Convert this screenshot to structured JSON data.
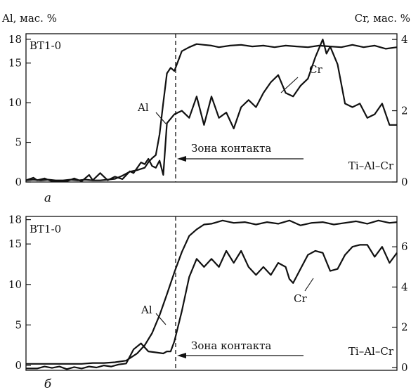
{
  "figure": {
    "left_axis_label": "Al, мас. %",
    "right_axis_label": "Cr, мас. %",
    "colors": {
      "line": "#111111",
      "background": "#ffffff"
    }
  },
  "chart_data": [
    {
      "type": "line",
      "panel_letter": "a",
      "sample_label": "ВТ1-0",
      "alloy_label": "Ti–Al–Cr",
      "contact_label": "Зона контакта",
      "ylabel": "Al, мас. %",
      "y2label": "Cr, мас. %",
      "xlim": [
        0,
        100
      ],
      "ylim": [
        0,
        18.7
      ],
      "y2lim": [
        0,
        4.16
      ],
      "yticks": [
        0,
        5,
        10,
        15,
        18
      ],
      "y2ticks": [
        0,
        2,
        4
      ],
      "contact_x": 38,
      "series": [
        {
          "name": "Al",
          "axis": "left",
          "x": [
            0,
            2,
            4,
            6,
            8,
            10,
            12,
            14,
            16,
            18,
            20,
            22,
            24,
            26,
            28,
            30,
            32,
            33,
            34,
            35,
            36,
            37,
            38,
            39,
            40,
            42,
            44,
            46,
            48,
            50,
            52,
            55,
            58,
            61,
            64,
            67,
            70,
            73,
            76,
            79,
            82,
            85,
            88,
            91,
            94,
            97,
            100
          ],
          "values": [
            0.2,
            0.3,
            0.2,
            0.3,
            0.2,
            0.2,
            0.3,
            0.2,
            0.3,
            0.2,
            0.2,
            0.3,
            0.4,
            0.8,
            1.3,
            1.5,
            1.8,
            2.5,
            3.0,
            3.4,
            6.0,
            10.0,
            13.7,
            14.4,
            14.0,
            16.5,
            17.0,
            17.4,
            17.3,
            17.2,
            17.0,
            17.2,
            17.3,
            17.1,
            17.2,
            17.0,
            17.2,
            17.1,
            17.0,
            17.2,
            17.1,
            17.0,
            17.3,
            17.0,
            17.2,
            16.8,
            17.0
          ]
        },
        {
          "name": "Cr",
          "axis": "right",
          "x": [
            0,
            2,
            3,
            5,
            7,
            9,
            11,
            13,
            15,
            17,
            18,
            20,
            22,
            24,
            26,
            28,
            29,
            30,
            31,
            32,
            33,
            34,
            35,
            36,
            37,
            38,
            40,
            42,
            44,
            46,
            48,
            50,
            52,
            54,
            56,
            58,
            60,
            62,
            64,
            66,
            68,
            70,
            72,
            74,
            76,
            78,
            80,
            81,
            82,
            84,
            86,
            88,
            90,
            92,
            94,
            96,
            98,
            100
          ],
          "values": [
            0.05,
            0.12,
            0.05,
            0.1,
            0.02,
            0.03,
            0.02,
            0.1,
            0.02,
            0.2,
            0.05,
            0.25,
            0.05,
            0.15,
            0.08,
            0.3,
            0.25,
            0.4,
            0.55,
            0.5,
            0.65,
            0.45,
            0.4,
            0.6,
            0.2,
            1.65,
            1.9,
            2.0,
            1.8,
            2.4,
            1.6,
            2.4,
            1.8,
            1.95,
            1.5,
            2.1,
            2.3,
            2.1,
            2.5,
            2.8,
            3.0,
            2.5,
            2.4,
            2.7,
            2.9,
            3.5,
            4.0,
            3.6,
            3.8,
            3.3,
            2.2,
            2.1,
            2.2,
            1.8,
            1.9,
            2.2,
            1.6,
            1.6
          ]
        }
      ]
    },
    {
      "type": "line",
      "panel_letter": "б",
      "sample_label": "ВТ1-0",
      "alloy_label": "Ti–Al–Cr",
      "contact_label": "Зона контакта",
      "ylabel": "Al, мас. %",
      "y2label": "Cr, мас. %",
      "xlim": [
        0,
        100
      ],
      "ylim": [
        -0.6,
        18.4
      ],
      "y2lim": [
        -0.14,
        7.51
      ],
      "yticks": [
        0,
        5,
        10,
        15,
        18
      ],
      "y2ticks": [
        0,
        2,
        4,
        6
      ],
      "contact_x": 38,
      "series": [
        {
          "name": "Al",
          "axis": "left",
          "x": [
            0,
            3,
            6,
            9,
            12,
            15,
            18,
            21,
            24,
            27,
            30,
            32,
            34,
            36,
            38,
            40,
            42,
            44,
            46,
            48,
            50,
            53,
            56,
            59,
            62,
            65,
            68,
            71,
            74,
            77,
            80,
            83,
            86,
            89,
            92,
            95,
            98,
            100
          ],
          "values": [
            0.2,
            0.2,
            0.2,
            0.2,
            0.2,
            0.2,
            0.3,
            0.3,
            0.4,
            0.6,
            1.5,
            2.5,
            4.0,
            6.2,
            8.8,
            11.5,
            14.0,
            16.0,
            16.8,
            17.4,
            17.5,
            17.9,
            17.6,
            17.7,
            17.4,
            17.7,
            17.5,
            17.9,
            17.3,
            17.6,
            17.7,
            17.4,
            17.6,
            17.8,
            17.5,
            17.9,
            17.6,
            17.7
          ]
        },
        {
          "name": "Cr",
          "axis": "right",
          "x": [
            0,
            3,
            5,
            7,
            9,
            11,
            13,
            15,
            17,
            19,
            21,
            23,
            25,
            27,
            29,
            31,
            33,
            35,
            37,
            38,
            39,
            40,
            42,
            44,
            46,
            48,
            50,
            52,
            54,
            56,
            58,
            60,
            62,
            64,
            66,
            68,
            70,
            71,
            72,
            74,
            76,
            78,
            80,
            82,
            84,
            86,
            88,
            90,
            92,
            94,
            96,
            98,
            100
          ],
          "values": [
            -0.05,
            -0.05,
            0.05,
            -0.02,
            0.05,
            -0.08,
            0.02,
            -0.05,
            0.05,
            0.0,
            0.1,
            0.05,
            0.15,
            0.2,
            0.9,
            1.2,
            0.8,
            0.75,
            0.7,
            0.8,
            0.8,
            1.3,
            2.8,
            4.5,
            5.4,
            5.0,
            5.4,
            5.0,
            5.8,
            5.2,
            5.8,
            5.0,
            4.6,
            5.0,
            4.6,
            5.2,
            5.0,
            4.4,
            4.2,
            4.9,
            5.6,
            5.8,
            5.7,
            4.8,
            4.9,
            5.6,
            6.0,
            6.1,
            6.1,
            5.5,
            6.0,
            5.2,
            5.7
          ]
        }
      ]
    }
  ]
}
